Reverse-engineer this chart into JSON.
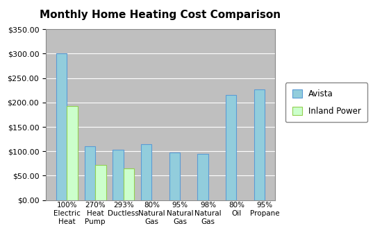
{
  "title": "Monthly Home Heating Cost Comparison",
  "cat_line1": [
    "100%",
    "270%",
    "293%",
    "80%",
    "95%",
    "98%",
    "80%",
    "95%"
  ],
  "cat_line2": [
    "Electric",
    "Heat",
    "Ductless",
    "Natural",
    "Natural",
    "Natural",
    "Oil",
    "Propane"
  ],
  "cat_line3": [
    "Heat",
    "Pump",
    "",
    "Gas",
    "Gas",
    "Gas",
    "",
    ""
  ],
  "avista_values": [
    300,
    110,
    103,
    115,
    97,
    94,
    215,
    227
  ],
  "inland_values": [
    193,
    72,
    65,
    null,
    null,
    null,
    null,
    null
  ],
  "avista_color": "#92CDDC",
  "avista_edge": "#5B9BD5",
  "inland_color": "#CCFFCC",
  "inland_edge": "#92D050",
  "avista_label": "Avista",
  "inland_label": "Inland Power",
  "ylim": [
    0,
    350
  ],
  "yticks": [
    0,
    50,
    100,
    150,
    200,
    250,
    300,
    350
  ],
  "plot_bg": "#BFBFBF",
  "figure_bg": "#FFFFFF",
  "title_fontsize": 11,
  "bar_width": 0.38,
  "grid_color": "#FFFFFF",
  "tick_fontsize": 8,
  "xtick_fontsize": 7.5
}
